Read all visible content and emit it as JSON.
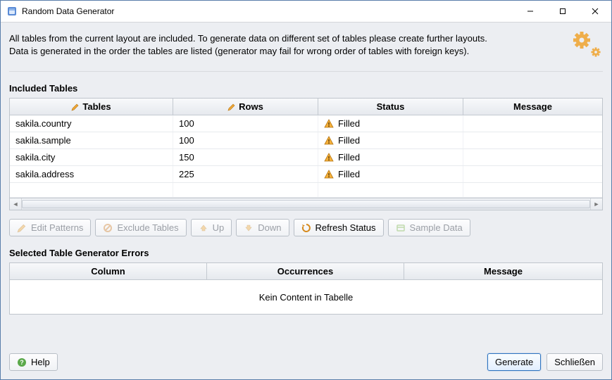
{
  "window": {
    "title": "Random Data Generator",
    "controls": {
      "minimize": "–",
      "maximize": "▢",
      "close": "✕"
    }
  },
  "intro": {
    "line1": "All tables from the current layout are included. To generate data on different set of tables please create further layouts.",
    "line2": "Data is generated in the order the tables are listed (generator may fail for wrong order of tables with foreign keys)."
  },
  "tables": {
    "section_title": "Included Tables",
    "columns": {
      "tables": "Tables",
      "rows": "Rows",
      "status": "Status",
      "message": "Message"
    },
    "rows": [
      {
        "name": "sakila.country",
        "rows": "100",
        "status": "Filled",
        "message": ""
      },
      {
        "name": "sakila.sample",
        "rows": "100",
        "status": "Filled",
        "message": ""
      },
      {
        "name": "sakila.city",
        "rows": "150",
        "status": "Filled",
        "message": ""
      },
      {
        "name": "sakila.address",
        "rows": "225",
        "status": "Filled",
        "message": ""
      }
    ]
  },
  "toolbar": {
    "edit_patterns": "Edit Patterns",
    "exclude_tables": "Exclude Tables",
    "up": "Up",
    "down": "Down",
    "refresh_status": "Refresh Status",
    "sample_data": "Sample Data"
  },
  "errors": {
    "section_title": "Selected Table Generator Errors",
    "columns": {
      "column": "Column",
      "occurrences": "Occurrences",
      "message": "Message"
    },
    "no_content": "Kein Content in Tabelle"
  },
  "footer": {
    "help": "Help",
    "generate": "Generate",
    "close": "Schließen"
  },
  "colors": {
    "accent": "#f0a838",
    "warn_fill": "#f6b13a",
    "warn_stroke": "#b57512",
    "primary_border": "#2f74c0"
  }
}
